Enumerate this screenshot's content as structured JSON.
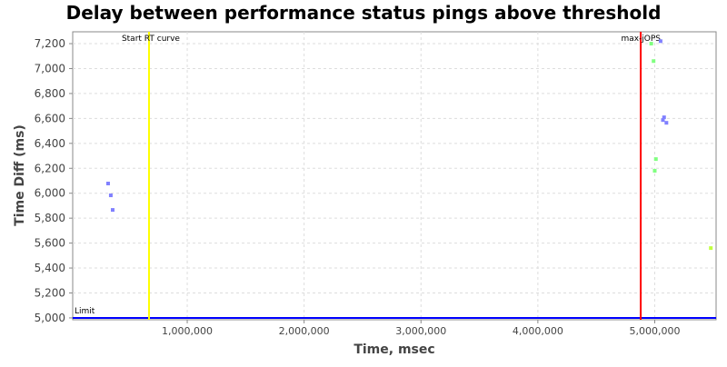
{
  "chart_data": {
    "type": "scatter",
    "title": "Delay between performance status pings above threshold",
    "xlabel": "Time, msec",
    "ylabel": "Time Diff (ms)",
    "xlim": [
      20000,
      5525000
    ],
    "ylim": [
      4985,
      7295
    ],
    "grid": true,
    "x_ticks": [
      1000000,
      2000000,
      3000000,
      4000000,
      5000000
    ],
    "x_tick_labels": [
      "1,000,000",
      "2,000,000",
      "3,000,000",
      "4,000,000",
      "5,000,000"
    ],
    "y_ticks": [
      5000,
      5200,
      5400,
      5600,
      5800,
      6000,
      6200,
      6400,
      6600,
      6800,
      7000,
      7200
    ],
    "y_tick_labels": [
      "5,000",
      "5,200",
      "5,400",
      "5,600",
      "5,800",
      "6,000",
      "6,200",
      "6,400",
      "6,600",
      "6,800",
      "7,000",
      "7,200"
    ],
    "series": [
      {
        "color": "#8080ff",
        "points": [
          [
            323000,
            6078
          ],
          [
            346000,
            5983
          ],
          [
            362000,
            5866
          ],
          [
            5050000,
            7220
          ],
          [
            5070000,
            6587
          ],
          [
            5080000,
            6609
          ],
          [
            5100000,
            6565
          ]
        ]
      },
      {
        "color": "#80ff80",
        "points": [
          [
            4970000,
            7200
          ],
          [
            4990000,
            7060
          ],
          [
            5010000,
            6274
          ],
          [
            5000000,
            6180
          ]
        ]
      },
      {
        "color": "#c0ff40",
        "points": [
          [
            5480000,
            5560
          ]
        ]
      }
    ],
    "markers": [
      {
        "label": "Start RT curve",
        "x": 673000,
        "color": "#ffff00"
      },
      {
        "label": "max-jOPS",
        "x": 4880000,
        "color": "#ff0000"
      }
    ],
    "threshold": {
      "label": "Limit",
      "y": 5000,
      "color": "#0000ff"
    }
  }
}
